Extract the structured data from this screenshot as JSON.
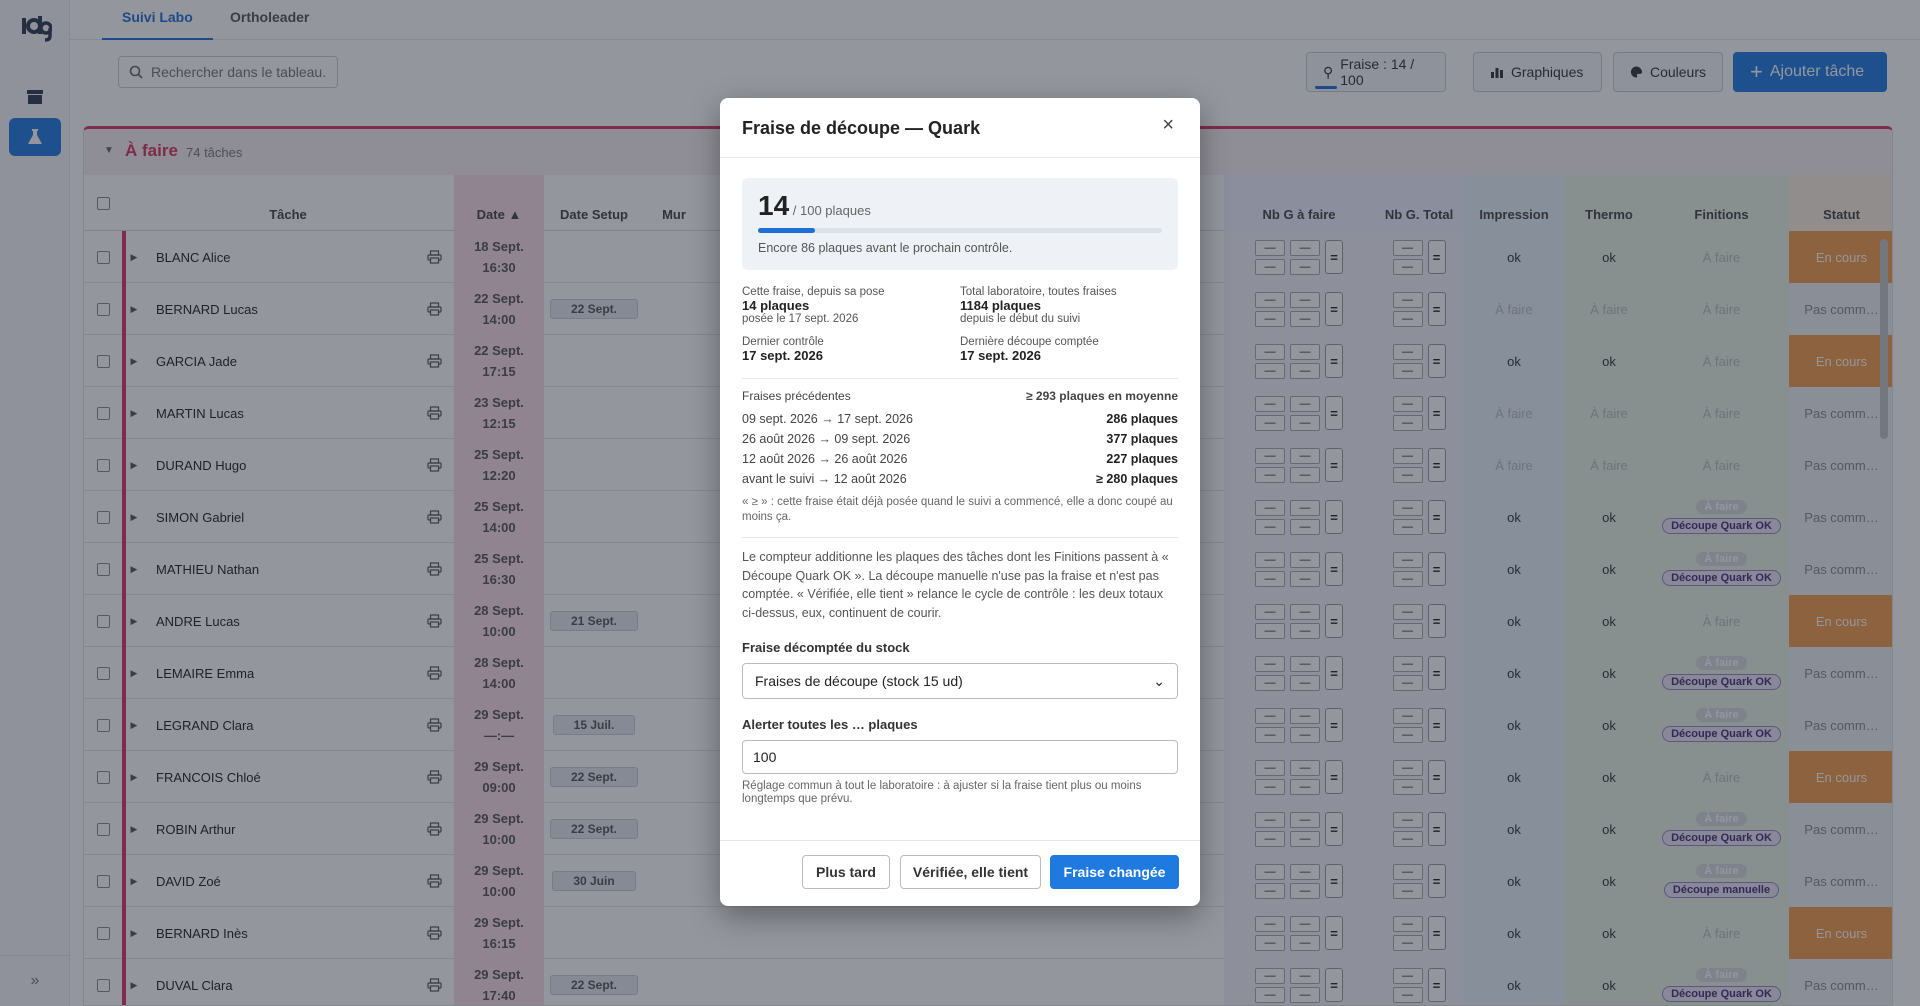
{
  "tabs": {
    "suivi": "Suivi Labo",
    "ortho": "Ortholeader"
  },
  "search": {
    "placeholder": "Rechercher dans le tableau."
  },
  "toolbar": {
    "fraise_label": "Fraise : 14 / 100",
    "graph_label": "Graphiques",
    "color_label": "Couleurs",
    "add_label": "Ajouter tâche"
  },
  "group": {
    "title": "À faire",
    "count": "74 tâches"
  },
  "columns": {
    "task": "Tâche",
    "date": "Date ▲",
    "setup": "Date Setup",
    "mur": "Mur",
    "ngafaire": "Nb G à faire",
    "ngtotal": "Nb G. Total",
    "impression": "Impression",
    "thermo": "Thermo",
    "finitions": "Finitions",
    "statut": "Statut"
  },
  "rows": [
    {
      "name": "BLANC Alice",
      "d": "18 Sept.",
      "t": "16:30",
      "setup": "",
      "imp": "ok",
      "th": "ok",
      "fin": "À faire",
      "st": "En cours"
    },
    {
      "name": "BERNARD Lucas",
      "d": "22 Sept.",
      "t": "14:00",
      "setup": "22 Sept.",
      "imp": "À faire",
      "th": "À faire",
      "fin": "À faire",
      "st": "Pas comm…"
    },
    {
      "name": "GARCIA Jade",
      "d": "22 Sept.",
      "t": "17:15",
      "setup": "",
      "imp": "ok",
      "th": "ok",
      "fin": "À faire",
      "st": "En cours"
    },
    {
      "name": "MARTIN Lucas",
      "d": "23 Sept.",
      "t": "12:15",
      "setup": "",
      "imp": "À faire",
      "th": "À faire",
      "fin": "À faire",
      "st": "Pas comm…"
    },
    {
      "name": "DURAND Hugo",
      "d": "25 Sept.",
      "t": "12:20",
      "setup": "",
      "imp": "À faire",
      "th": "À faire",
      "fin": "À faire",
      "st": "Pas comm…"
    },
    {
      "name": "SIMON Gabriel",
      "d": "25 Sept.",
      "t": "14:00",
      "setup": "",
      "imp": "ok",
      "th": "ok",
      "fin": "Découpe Quark OK",
      "st": "Pas comm…"
    },
    {
      "name": "MATHIEU Nathan",
      "d": "25 Sept.",
      "t": "16:30",
      "setup": "",
      "imp": "ok",
      "th": "ok",
      "fin": "Découpe Quark OK",
      "st": "Pas comm…"
    },
    {
      "name": "ANDRE Lucas",
      "d": "28 Sept.",
      "t": "10:00",
      "setup": "21 Sept.",
      "imp": "ok",
      "th": "ok",
      "fin": "À faire",
      "st": "En cours"
    },
    {
      "name": "LEMAIRE Emma",
      "d": "28 Sept.",
      "t": "14:00",
      "setup": "",
      "imp": "ok",
      "th": "ok",
      "fin": "Découpe Quark OK",
      "st": "Pas comm…"
    },
    {
      "name": "LEGRAND Clara",
      "d": "29 Sept.",
      "t": "—:—",
      "setup": "15 Juil.",
      "imp": "ok",
      "th": "ok",
      "fin": "Découpe Quark OK",
      "st": "Pas comm…"
    },
    {
      "name": "FRANCOIS Chloé",
      "d": "29 Sept.",
      "t": "09:00",
      "setup": "22 Sept.",
      "imp": "ok",
      "th": "ok",
      "fin": "À faire",
      "st": "En cours"
    },
    {
      "name": "ROBIN Arthur",
      "d": "29 Sept.",
      "t": "10:00",
      "setup": "22 Sept.",
      "imp": "ok",
      "th": "ok",
      "fin": "Découpe Quark OK",
      "st": "Pas comm…"
    },
    {
      "name": "DAVID Zoé",
      "d": "29 Sept.",
      "t": "10:00",
      "setup": "30 Juin",
      "imp": "ok",
      "th": "ok",
      "fin": "Découpe manuelle",
      "st": "Pas comm…"
    },
    {
      "name": "BERNARD Inès",
      "d": "29 Sept.",
      "t": "16:15",
      "setup": "",
      "imp": "ok",
      "th": "ok",
      "fin": "À faire",
      "st": "En cours"
    },
    {
      "name": "DUVAL Clara",
      "d": "29 Sept.",
      "t": "17:40",
      "setup": "22 Sept.",
      "imp": "ok",
      "th": "ok",
      "fin": "Découpe Quark OK",
      "st": "Pas comm…"
    }
  ],
  "modal": {
    "title": "Fraise de découpe — Quark",
    "count": "14",
    "count_sub": "/ 100 plaques",
    "progress": 0.14,
    "progress_text": "Encore 86 plaques avant le prochain contrôle.",
    "since_label": "Cette fraise, depuis sa pose",
    "since_value": "14 plaques",
    "since_sub": "posée le 17 sept. 2026",
    "total_label": "Total laboratoire, toutes fraises",
    "total_value": "1184 plaques",
    "total_sub": "depuis le début du suivi",
    "lastcheck_label": "Dernier contrôle",
    "lastcheck_value": "17 sept. 2026",
    "lastcut_label": "Dernière découpe comptée",
    "lastcut_value": "17 sept. 2026",
    "prev_title": "Fraises précédentes",
    "prev_avg": "≥ 293 plaques en moyenne",
    "prev": [
      {
        "range": "09 sept. 2026 → 17 sept. 2026",
        "count": "286 plaques"
      },
      {
        "range": "26 août 2026 → 09 sept. 2026",
        "count": "377 plaques"
      },
      {
        "range": "12 août 2026 → 26 août 2026",
        "count": "227 plaques"
      },
      {
        "range": "avant le suivi → 12 août 2026",
        "count": "≥ 280 plaques"
      }
    ],
    "prev_note": "« ≥ » : cette fraise était déjà posée quand le suivi a commencé, elle a donc coupé au moins ça.",
    "desc": "Le compteur additionne les plaques des tâches dont les Finitions passent à « Découpe Quark OK ». La découpe manuelle n'use pas la fraise et n'est pas comptée. « Vérifiée, elle tient » relance le cycle de contrôle : les deux totaux ci-dessus, eux, continuent de courir.",
    "stock_label": "Fraise décomptée du stock",
    "stock_value": "Fraises de découpe (stock 15 ud)",
    "alert_label": "Alerter toutes les … plaques",
    "alert_value": "100",
    "alert_hint": "Réglage commun à tout le laboratoire : à ajuster si la fraise tient plus ou moins longtemps que prévu.",
    "btn_later": "Plus tard",
    "btn_ok": "Vérifiée, elle tient",
    "btn_changed": "Fraise changée"
  },
  "colors": {
    "accent": "#1f7ae0",
    "group": "#d6345e",
    "encours": "#f39c4a"
  }
}
